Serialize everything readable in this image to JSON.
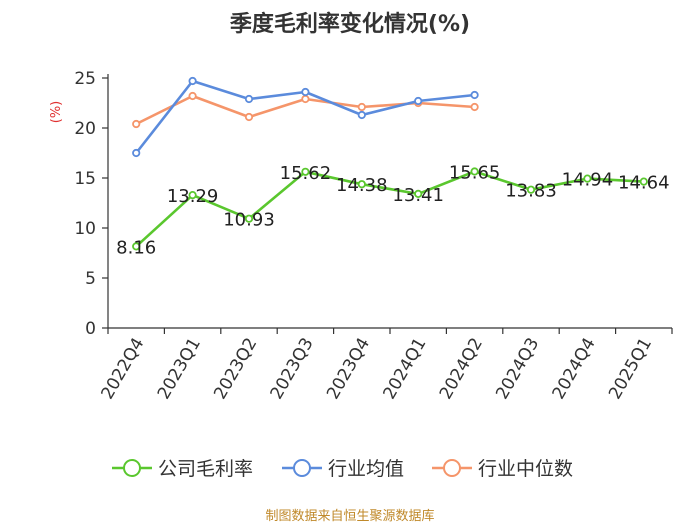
{
  "chart_data": {
    "type": "line",
    "title": "季度毛利率变化情况(%)",
    "ylabel": "(%)",
    "ylim": [
      0,
      25
    ],
    "yticks": [
      0,
      5,
      10,
      15,
      20,
      25
    ],
    "categories": [
      "2022Q4",
      "2023Q1",
      "2023Q2",
      "2023Q3",
      "2023Q4",
      "2024Q1",
      "2024Q2",
      "2024Q3",
      "2024Q4",
      "2025Q1"
    ],
    "grid": false,
    "legend_position": "bottom",
    "series": [
      {
        "name": "公司毛利率",
        "color": "#5ac72e",
        "show_labels": true,
        "values": [
          8.16,
          13.29,
          10.93,
          15.62,
          14.38,
          13.41,
          15.65,
          13.83,
          14.94,
          14.64
        ]
      },
      {
        "name": "行业均值",
        "color": "#5b8bdc",
        "show_labels": false,
        "values": [
          17.5,
          24.7,
          22.9,
          23.6,
          21.3,
          22.7,
          23.3,
          null,
          null,
          null
        ]
      },
      {
        "name": "行业中位数",
        "color": "#f5956a",
        "show_labels": false,
        "values": [
          20.4,
          23.2,
          21.1,
          22.9,
          22.1,
          22.5,
          22.1,
          null,
          null,
          null
        ]
      }
    ]
  },
  "footer": {
    "source": "制图数据来自恒生聚源数据库"
  }
}
